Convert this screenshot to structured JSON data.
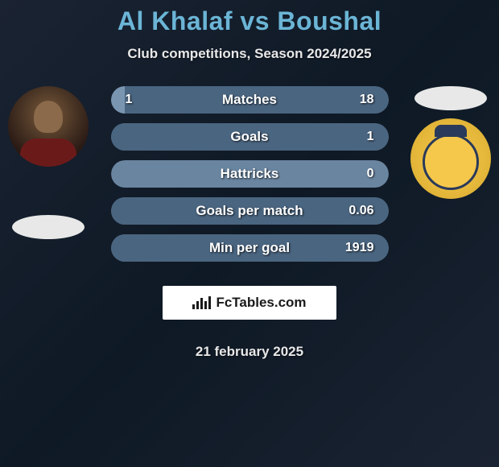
{
  "title": "Al Khalaf vs Boushal",
  "subtitle": "Club competitions, Season 2024/2025",
  "date": "21 february 2025",
  "fctables_label": "FcTables.com",
  "colors": {
    "title": "#6bb5d6",
    "text": "#e8e8e8",
    "bar_dark": "#4a6580",
    "bar_light": "#7a95b0",
    "bar_highlight": "#6a85a0",
    "badge_bg": "#ffffff"
  },
  "stats": [
    {
      "label": "Matches",
      "left_value": "1",
      "right_value": "18",
      "left_pct": 5,
      "right_pct": 95,
      "left_color": "#7a95b0",
      "right_color": "#4a6580"
    },
    {
      "label": "Goals",
      "left_value": "",
      "right_value": "1",
      "left_pct": 0,
      "right_pct": 100,
      "left_color": "#7a95b0",
      "right_color": "#4a6580"
    },
    {
      "label": "Hattricks",
      "left_value": "",
      "right_value": "0",
      "left_pct": 0,
      "right_pct": 0,
      "left_color": "#7a95b0",
      "right_color": "#4a6580"
    },
    {
      "label": "Goals per match",
      "left_value": "",
      "right_value": "0.06",
      "left_pct": 0,
      "right_pct": 100,
      "left_color": "#7a95b0",
      "right_color": "#4a6580"
    },
    {
      "label": "Min per goal",
      "left_value": "",
      "right_value": "1919",
      "left_pct": 0,
      "right_pct": 100,
      "left_color": "#7a95b0",
      "right_color": "#4a6580"
    }
  ]
}
